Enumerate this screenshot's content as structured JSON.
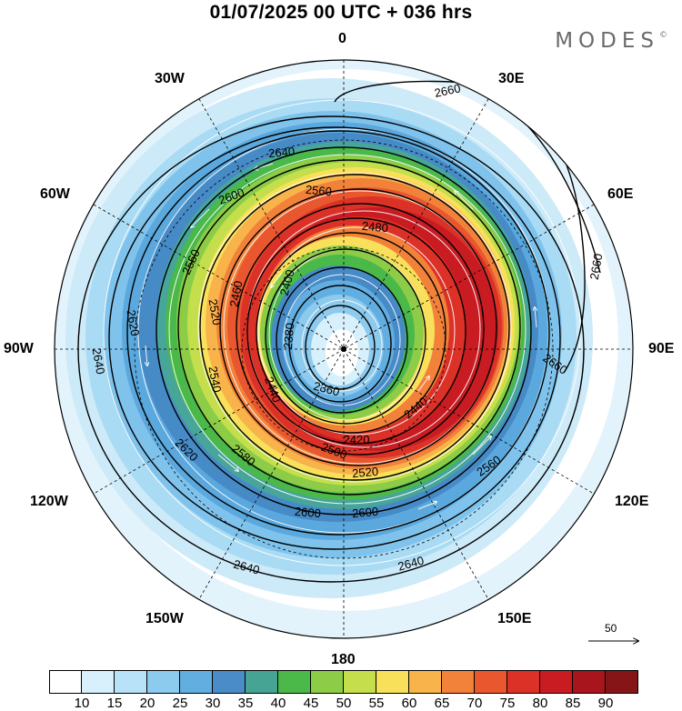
{
  "title": "01/07/2025  00 UTC  + 036 hrs",
  "brand": "MODES",
  "brand_mark": "©",
  "longitude_labels": {
    "deg0": "0",
    "deg30e": "30E",
    "deg60e": "60E",
    "deg90e": "90E",
    "deg120e": "120E",
    "deg150e": "150E",
    "deg180": "180",
    "deg150w": "150W",
    "deg120w": "120W",
    "deg90w": "90W",
    "deg60w": "60W",
    "deg30w": "30W"
  },
  "reference_vector": {
    "label": "50"
  },
  "chart_data": {
    "type": "heatmap",
    "projection": "south-polar-stereographic",
    "fields": [
      "wind speed (shaded)",
      "geopotential height contours",
      "streamlines"
    ],
    "contour_labels": [
      {
        "value": 2660,
        "text": "2660"
      },
      {
        "value": 2640,
        "text": "2640"
      },
      {
        "value": 2620,
        "text": "2620"
      },
      {
        "value": 2600,
        "text": "2600"
      },
      {
        "value": 2580,
        "text": "2580"
      },
      {
        "value": 2560,
        "text": "2560"
      },
      {
        "value": 2540,
        "text": "2540"
      },
      {
        "value": 2520,
        "text": "2520"
      },
      {
        "value": 2500,
        "text": "2500"
      },
      {
        "value": 2480,
        "text": "2480"
      },
      {
        "value": 2460,
        "text": "2460"
      },
      {
        "value": 2440,
        "text": "2440"
      },
      {
        "value": 2420,
        "text": "2420"
      },
      {
        "value": 2400,
        "text": "2400"
      },
      {
        "value": 2380,
        "text": "2380"
      },
      {
        "value": 2360,
        "text": "2360"
      }
    ],
    "legend": {
      "tick_labels": [
        "10",
        "15",
        "20",
        "25",
        "30",
        "35",
        "40",
        "45",
        "50",
        "55",
        "60",
        "65",
        "70",
        "75",
        "80",
        "85",
        "90"
      ],
      "colors": [
        "#ffffff",
        "#d8f0fb",
        "#b7e2f7",
        "#8ccaee",
        "#62aee0",
        "#4a8cc8",
        "#46a494",
        "#4bb84a",
        "#8ccc47",
        "#c4df4b",
        "#f8e05a",
        "#f8b34a",
        "#f2823a",
        "#e9572f",
        "#dc3127",
        "#c81c22",
        "#a8151c",
        "#861518"
      ]
    },
    "grid": true
  }
}
